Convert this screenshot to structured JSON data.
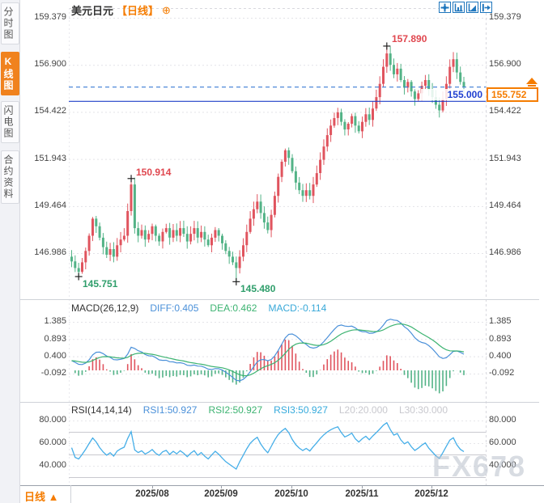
{
  "sidebar": {
    "tabs": [
      {
        "label": "分时图",
        "active": false
      },
      {
        "label": "K线图",
        "active": true
      },
      {
        "label": "闪电图",
        "active": false
      },
      {
        "label": "合约资料",
        "active": false
      }
    ]
  },
  "header": {
    "symbol": "美元日元",
    "period_tag": "【日线】",
    "add_icon": "⊕"
  },
  "toolbar": {
    "buttons": [
      "crosshair",
      "axis-zoom-in",
      "axis-zoom-out",
      "pan-right"
    ]
  },
  "main_chart": {
    "y_axis_labels": [
      "159.379",
      "156.900",
      "154.422",
      "151.943",
      "149.464",
      "146.986"
    ],
    "alert_price_label": "155.000",
    "current_price_label": "155.752",
    "annotations": [
      {
        "text": "157.890",
        "color": "red"
      },
      {
        "text": "150.914",
        "color": "red"
      },
      {
        "text": "145.751",
        "color": "green"
      },
      {
        "text": "145.480",
        "color": "green"
      }
    ]
  },
  "macd_panel": {
    "title": "MACD(26,12,9)",
    "diff_label": "DIFF:0.405",
    "dea_label": "DEA:0.462",
    "macd_label": "MACD:-0.114",
    "axis_labels": [
      "1.385",
      "0.893",
      "0.400",
      "-0.092"
    ]
  },
  "rsi_panel": {
    "title": "RSI(14,14,14)",
    "rsi1_label": "RSI1:50.927",
    "rsi2_label": "RSI2:50.927",
    "rsi3_label": "RSI3:50.927",
    "l20_label": "L20:20.000",
    "l30_label": "L30:30.000",
    "axis_labels": [
      "80.000",
      "60.000",
      "40.000"
    ]
  },
  "bottom_bar": {
    "period": "日线 ▲",
    "dates": [
      "2025/08",
      "2025/09",
      "2025/10",
      "2025/11",
      "2025/12"
    ]
  },
  "watermark": "FX678",
  "colors": {
    "accent_orange": "#f57c00",
    "up": "#e0545e",
    "down": "#53b387",
    "diff": "#4a90d9",
    "dea": "#3cb371",
    "rsi": "#45aee8",
    "alert_blue": "#2140c8",
    "dashed_blue": "#3a7bd5"
  },
  "chart_data": {
    "type": "candlestick",
    "symbol": "美元日元",
    "period": "日线",
    "x_dates": [
      "2025/08",
      "2025/09",
      "2025/10",
      "2025/11",
      "2025/12"
    ],
    "y_ticks": [
      159.379,
      156.9,
      154.422,
      151.943,
      149.464,
      146.986
    ],
    "closes": [
      146.55,
      146.2,
      146.0,
      146.5,
      147.1,
      147.9,
      148.8,
      148.4,
      147.8,
      147.3,
      146.9,
      147.2,
      146.8,
      147.4,
      147.7,
      147.9,
      149.2,
      150.6,
      148.3,
      147.9,
      148.2,
      147.7,
      148.0,
      148.4,
      147.9,
      147.6,
      148.1,
      148.3,
      147.8,
      148.2,
      147.9,
      148.3,
      148.0,
      147.6,
      148.0,
      148.3,
      147.8,
      148.1,
      147.7,
      147.4,
      147.8,
      148.2,
      147.9,
      147.5,
      147.1,
      146.8,
      146.5,
      146.2,
      146.8,
      147.4,
      148.1,
      148.8,
      149.3,
      149.7,
      149.1,
      148.6,
      148.2,
      149.0,
      150.0,
      151.0,
      151.8,
      152.4,
      152.0,
      151.3,
      150.7,
      150.3,
      150.0,
      150.3,
      150.0,
      150.6,
      151.2,
      151.9,
      152.6,
      153.2,
      153.7,
      154.1,
      154.4,
      153.9,
      153.5,
      153.8,
      154.2,
      153.7,
      153.4,
      153.9,
      154.3,
      154.0,
      154.6,
      155.2,
      155.9,
      156.8,
      157.5,
      156.9,
      156.4,
      156.7,
      156.1,
      155.7,
      156.0,
      155.5,
      155.1,
      155.4,
      155.8,
      156.1,
      155.6,
      155.2,
      154.8,
      154.5,
      155.1,
      155.9,
      156.8,
      157.2,
      156.5,
      156.0,
      155.752
    ],
    "overrides": {
      "2": {
        "low": 145.751
      },
      "17": {
        "high": 150.914
      },
      "47": {
        "low": 145.48
      },
      "90": {
        "high": 157.89
      },
      "112": {
        "close": 155.752
      }
    },
    "markers": [
      {
        "index": 90,
        "type": "high",
        "value": 157.89,
        "label": "157.890"
      },
      {
        "index": 17,
        "type": "high",
        "value": 150.914,
        "label": "150.914"
      },
      {
        "index": 2,
        "type": "low",
        "value": 145.751,
        "label": "145.751"
      },
      {
        "index": 47,
        "type": "low",
        "value": 145.48,
        "label": "145.480"
      }
    ],
    "lines": [
      {
        "value": 155.752,
        "style": "dashed",
        "color": "#3a7bd5"
      },
      {
        "value": 155.0,
        "style": "solid",
        "color": "#2140c8",
        "label": "155.000"
      }
    ],
    "current_price": 155.752,
    "indicators": {
      "macd": {
        "params": [
          26,
          12,
          9
        ],
        "diff": 0.405,
        "dea": 0.462,
        "macd": -0.114,
        "y_ticks": [
          1.385,
          0.893,
          0.4,
          -0.092
        ]
      },
      "rsi": {
        "params": [
          14,
          14,
          14
        ],
        "rsi1": 50.927,
        "rsi2": 50.927,
        "rsi3": 50.927,
        "l20": 20.0,
        "l30": 30.0,
        "y_ticks": [
          80,
          60,
          40
        ],
        "ref_lines": [
          70,
          50,
          30
        ]
      }
    }
  }
}
